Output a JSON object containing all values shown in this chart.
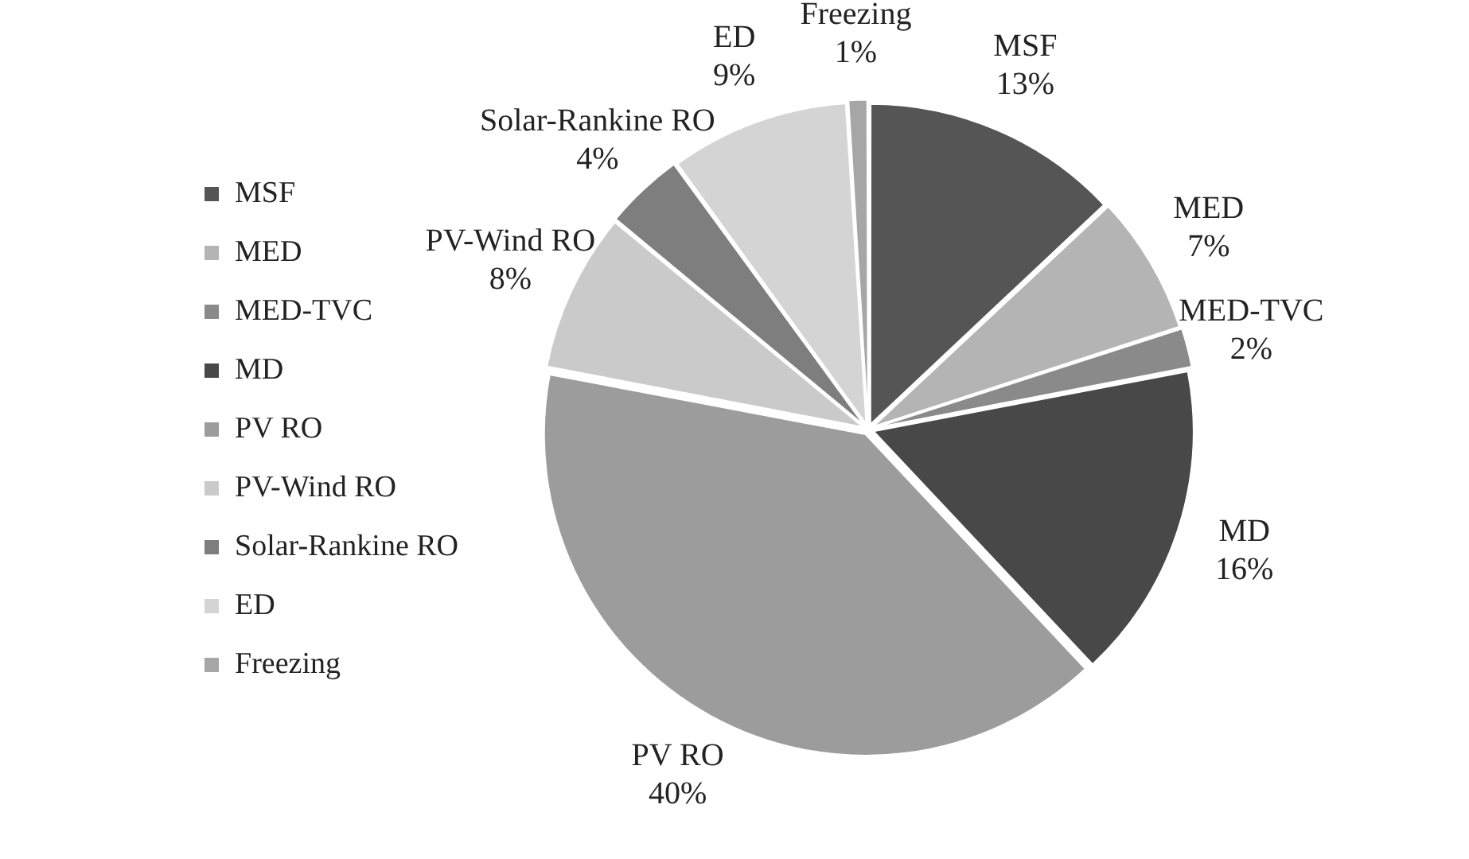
{
  "chart_data": {
    "type": "pie",
    "categories": [
      "MSF",
      "MED",
      "MED-TVC",
      "MD",
      "PV RO",
      "PV-Wind RO",
      "Solar-Rankine RO",
      "ED",
      "Freezing"
    ],
    "values": [
      13,
      7,
      2,
      16,
      40,
      8,
      4,
      9,
      1
    ],
    "colors": [
      "#555555",
      "#b4b4b4",
      "#8a8a8a",
      "#484848",
      "#9c9c9c",
      "#cacaca",
      "#7e7e7e",
      "#d4d4d4",
      "#a6a6a6"
    ],
    "value_labels": [
      "13%",
      "7%",
      "2%",
      "16%",
      "40%",
      "8%",
      "4%",
      "9%",
      "1%"
    ],
    "legend": "left"
  }
}
